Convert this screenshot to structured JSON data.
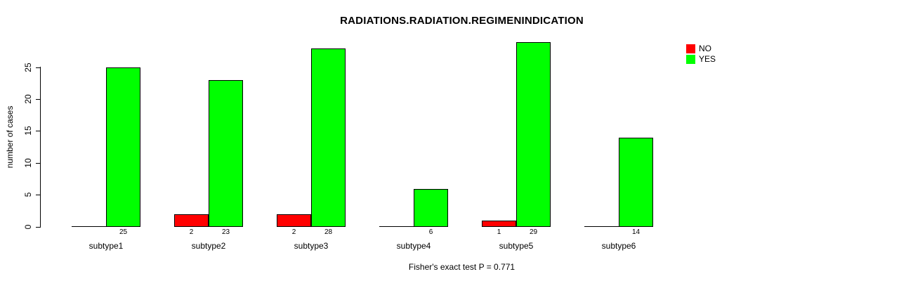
{
  "chart_data": {
    "type": "bar",
    "title": "RADIATIONS.RADIATION.REGIMENINDICATION",
    "xlabel": "",
    "ylabel": "number of cases",
    "caption": "Fisher's exact test P = 0.771",
    "categories": [
      "subtype1",
      "subtype2",
      "subtype3",
      "subtype4",
      "subtype5",
      "subtype6"
    ],
    "series": [
      {
        "name": "NO",
        "color": "#FF0000",
        "values": [
          0,
          2,
          2,
          0,
          1,
          0
        ]
      },
      {
        "name": "YES",
        "color": "#00FF00",
        "values": [
          25,
          23,
          28,
          6,
          29,
          14
        ]
      }
    ],
    "yticks": [
      0,
      5,
      10,
      15,
      20,
      25
    ],
    "ylim": [
      0,
      29
    ],
    "grid": false,
    "bar_value_labels": true,
    "zero_values_unlabeled": true,
    "legend_position": "top-right",
    "background_color": "#FFFFFF",
    "text_color": "#000000"
  }
}
